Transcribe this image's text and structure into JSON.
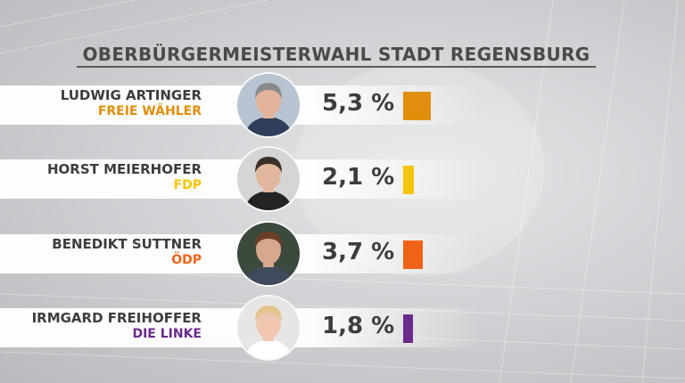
{
  "title": "OBERBÜRGERMEISTERWAHL STADT REGENSBURG",
  "chart_data": {
    "type": "bar",
    "title": "OBERBÜRGERMEISTERWAHL STADT REGENSBURG",
    "categories": [
      "LUDWIG ARTINGER",
      "HORST MEIERHOFER",
      "BENEDIKT SUTTNER",
      "IRMGARD FREIHOFFER"
    ],
    "values": [
      5.3,
      2.1,
      3.7,
      1.8
    ],
    "value_labels": [
      "5,3 %",
      "2,1 %",
      "3,7 %",
      "1,8 %"
    ],
    "parties": [
      "FREIE WÄHLER",
      "FDP",
      "ÖDP",
      "DIE LINKE"
    ],
    "colors": [
      "#e08e0b",
      "#f5c400",
      "#ef6218",
      "#6b2a8c"
    ],
    "unit": "%"
  },
  "candidates": [
    {
      "name": "LUDWIG ARTINGER",
      "party": "FREIE WÄHLER",
      "percent": "5,3 %",
      "party_color": "#e08e0b",
      "photo": "candidate-photo"
    },
    {
      "name": "HORST MEIERHOFER",
      "party": "FDP",
      "percent": "2,1 %",
      "party_color": "#f5c400",
      "photo": "candidate-photo"
    },
    {
      "name": "BENEDIKT SUTTNER",
      "party": "ÖDP",
      "percent": "3,7 %",
      "party_color": "#ef6218",
      "photo": "candidate-photo"
    },
    {
      "name": "IRMGARD FREIHOFFER",
      "party": "DIE LINKE",
      "percent": "1,8 %",
      "party_color": "#6b2a8c",
      "photo": "candidate-photo"
    }
  ]
}
